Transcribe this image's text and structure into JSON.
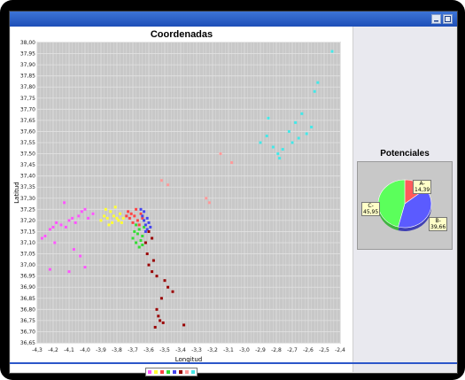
{
  "window": {
    "title": ""
  },
  "scatter_chart": {
    "title": "Coordenadas",
    "xlabel": "Longitud",
    "ylabel": "Latitud"
  },
  "pie_chart": {
    "title": "Potenciales",
    "labels": [
      "A-\n14,39",
      "B-\n39,66",
      "C-\n45,95"
    ]
  },
  "colors": {
    "plot_bg": "#c8c8c8",
    "grid": "#e2e2e2",
    "titlebar": "#2a5fcc"
  },
  "chart_data": [
    {
      "type": "scatter",
      "title": "Coordenadas",
      "xlabel": "Longitud",
      "ylabel": "Latitud",
      "xlim": [
        -4.3,
        -2.4
      ],
      "ylim": [
        36.65,
        38.0
      ],
      "xticks": [
        -4.3,
        -4.2,
        -4.1,
        -4.0,
        -3.9,
        -3.8,
        -3.7,
        -3.6,
        -3.5,
        -3.4,
        -3.3,
        -3.2,
        -3.1,
        -3.0,
        -2.9,
        -2.8,
        -2.7,
        -2.6,
        -2.5,
        -2.4
      ],
      "xtick_labels": [
        "-4,3",
        "-4,2",
        "-4,1",
        "-4,0",
        "-3,9",
        "-3,8",
        "-3,7",
        "-3,6",
        "-3,5",
        "-3,4",
        "-3,3",
        "-3,2",
        "-3,1",
        "-3,0",
        "-2,9",
        "-2,8",
        "-2,7",
        "-2,6",
        "-2,5",
        "-2,4"
      ],
      "yticks": [
        36.65,
        36.7,
        36.75,
        36.8,
        36.85,
        36.9,
        36.95,
        37.0,
        37.05,
        37.1,
        37.15,
        37.2,
        37.25,
        37.3,
        37.35,
        37.4,
        37.45,
        37.5,
        37.55,
        37.6,
        37.65,
        37.7,
        37.75,
        37.8,
        37.85,
        37.9,
        37.95,
        38.0
      ],
      "ytick_labels": [
        "36,65",
        "36,70",
        "36,75",
        "36,80",
        "36,85",
        "36,90",
        "36,95",
        "37,00",
        "37,05",
        "37,10",
        "37,15",
        "37,20",
        "37,25",
        "37,30",
        "37,35",
        "37,40",
        "37,45",
        "37,50",
        "37,55",
        "37,60",
        "37,65",
        "37,70",
        "37,75",
        "37,80",
        "37,85",
        "37,90",
        "37,95",
        "38,00"
      ],
      "grid": true,
      "series": [
        {
          "color": "#ff55ff",
          "points": [
            [
              -4.27,
              37.12
            ],
            [
              -4.25,
              37.13
            ],
            [
              -4.22,
              37.16
            ],
            [
              -4.2,
              37.17
            ],
            [
              -4.18,
              37.19
            ],
            [
              -4.15,
              37.18
            ],
            [
              -4.12,
              37.17
            ],
            [
              -4.1,
              37.2
            ],
            [
              -4.08,
              37.21
            ],
            [
              -4.06,
              37.19
            ],
            [
              -4.04,
              37.22
            ],
            [
              -4.02,
              37.24
            ],
            [
              -4.0,
              37.25
            ],
            [
              -3.98,
              37.21
            ],
            [
              -4.19,
              37.1
            ],
            [
              -4.07,
              37.07
            ],
            [
              -4.03,
              37.04
            ],
            [
              -4.22,
              36.98
            ],
            [
              -4.1,
              36.97
            ],
            [
              -4.0,
              36.99
            ],
            [
              -4.13,
              37.28
            ],
            [
              -3.95,
              37.23
            ]
          ]
        },
        {
          "color": "#ffff33",
          "points": [
            [
              -3.9,
              37.2
            ],
            [
              -3.88,
              37.22
            ],
            [
              -3.86,
              37.21
            ],
            [
              -3.84,
              37.24
            ],
            [
              -3.83,
              37.19
            ],
            [
              -3.82,
              37.22
            ],
            [
              -3.81,
              37.26
            ],
            [
              -3.8,
              37.21
            ],
            [
              -3.79,
              37.2
            ],
            [
              -3.78,
              37.23
            ],
            [
              -3.77,
              37.19
            ],
            [
              -3.76,
              37.21
            ],
            [
              -3.85,
              37.18
            ],
            [
              -3.87,
              37.25
            ]
          ]
        },
        {
          "color": "#ff4444",
          "points": [
            [
              -3.74,
              37.22
            ],
            [
              -3.73,
              37.24
            ],
            [
              -3.72,
              37.21
            ],
            [
              -3.71,
              37.23
            ],
            [
              -3.7,
              37.19
            ],
            [
              -3.69,
              37.22
            ],
            [
              -3.68,
              37.25
            ],
            [
              -3.67,
              37.2
            ],
            [
              -3.66,
              37.18
            ],
            [
              -3.65,
              37.23
            ],
            [
              -3.64,
              37.21
            ]
          ]
        },
        {
          "color": "#33dd33",
          "points": [
            [
              -3.7,
              37.12
            ],
            [
              -3.69,
              37.15
            ],
            [
              -3.68,
              37.1
            ],
            [
              -3.67,
              37.14
            ],
            [
              -3.66,
              37.16
            ],
            [
              -3.65,
              37.11
            ],
            [
              -3.64,
              37.13
            ],
            [
              -3.63,
              37.17
            ],
            [
              -3.68,
              37.18
            ],
            [
              -3.66,
              37.08
            ],
            [
              -3.64,
              37.09
            ]
          ]
        },
        {
          "color": "#4444ee",
          "points": [
            [
              -3.65,
              37.25
            ],
            [
              -3.64,
              37.22
            ],
            [
              -3.63,
              37.2
            ],
            [
              -3.62,
              37.18
            ],
            [
              -3.61,
              37.21
            ],
            [
              -3.6,
              37.19
            ],
            [
              -3.59,
              37.17
            ],
            [
              -3.62,
              37.15
            ],
            [
              -3.63,
              37.24
            ],
            [
              -3.61,
              37.16
            ]
          ]
        },
        {
          "color": "#990000",
          "points": [
            [
              -3.6,
              37.15
            ],
            [
              -3.58,
              37.12
            ],
            [
              -3.61,
              37.05
            ],
            [
              -3.6,
              37.0
            ],
            [
              -3.58,
              36.97
            ],
            [
              -3.55,
              36.95
            ],
            [
              -3.5,
              36.93
            ],
            [
              -3.48,
              36.9
            ],
            [
              -3.45,
              36.88
            ],
            [
              -3.52,
              36.85
            ],
            [
              -3.55,
              36.8
            ],
            [
              -3.54,
              36.77
            ],
            [
              -3.53,
              36.75
            ],
            [
              -3.56,
              36.72
            ],
            [
              -3.51,
              36.74
            ],
            [
              -3.38,
              36.73
            ],
            [
              -3.62,
              37.1
            ],
            [
              -3.57,
              37.02
            ]
          ]
        },
        {
          "color": "#ff9a9a",
          "points": [
            [
              -3.52,
              37.38
            ],
            [
              -3.24,
              37.3
            ],
            [
              -3.08,
              37.46
            ],
            [
              -3.22,
              37.28
            ],
            [
              -3.15,
              37.5
            ],
            [
              -3.48,
              37.36
            ]
          ]
        },
        {
          "color": "#44e8e8",
          "points": [
            [
              -2.9,
              37.55
            ],
            [
              -2.86,
              37.58
            ],
            [
              -2.82,
              37.53
            ],
            [
              -2.79,
              37.5
            ],
            [
              -2.76,
              37.52
            ],
            [
              -2.72,
              37.6
            ],
            [
              -2.68,
              37.64
            ],
            [
              -2.64,
              37.68
            ],
            [
              -2.61,
              37.59
            ],
            [
              -2.58,
              37.62
            ],
            [
              -2.56,
              37.78
            ],
            [
              -2.54,
              37.82
            ],
            [
              -2.45,
              37.96
            ],
            [
              -2.7,
              37.55
            ],
            [
              -2.66,
              37.57
            ],
            [
              -2.78,
              37.48
            ],
            [
              -2.85,
              37.66
            ]
          ]
        }
      ]
    },
    {
      "type": "pie",
      "title": "Potenciales",
      "slices": [
        {
          "label": "A-",
          "value": 14.39,
          "value_text": "14,39",
          "color": "#ff5b5b"
        },
        {
          "label": "B-",
          "value": 39.66,
          "value_text": "39,66",
          "color": "#5b5bff"
        },
        {
          "label": "C-",
          "value": 45.95,
          "value_text": "45,95",
          "color": "#5bff5b"
        }
      ]
    }
  ]
}
